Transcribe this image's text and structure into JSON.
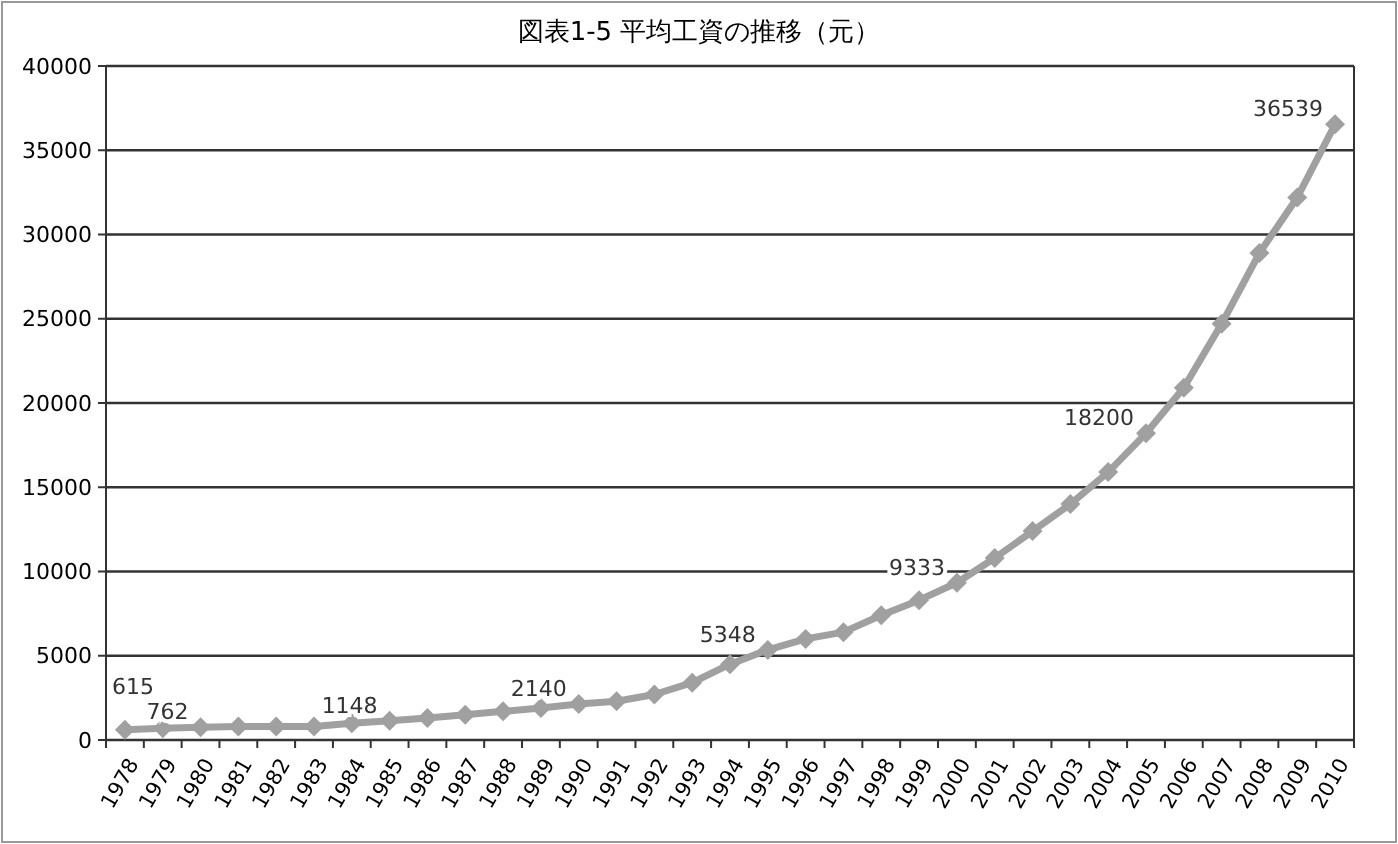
{
  "chart_data": {
    "type": "line",
    "title": "図表1-5 平均工資の推移（元）",
    "categories": [
      "1978",
      "1979",
      "1980",
      "1981",
      "1982",
      "1983",
      "1984",
      "1985",
      "1986",
      "1987",
      "1988",
      "1989",
      "1990",
      "1991",
      "1992",
      "1993",
      "1994",
      "1995",
      "1996",
      "1997",
      "1998",
      "1999",
      "2000",
      "2001",
      "2002",
      "2003",
      "2004",
      "2005",
      "2006",
      "2007",
      "2008",
      "2009",
      "2010"
    ],
    "values": [
      615,
      700,
      762,
      800,
      800,
      800,
      1000,
      1148,
      1300,
      1500,
      1700,
      1900,
      2140,
      2300,
      2700,
      3400,
      4500,
      5348,
      6000,
      6400,
      7400,
      8300,
      9333,
      10800,
      12400,
      14000,
      15900,
      18200,
      20900,
      24700,
      28900,
      32200,
      36539
    ],
    "value_labels": [
      "615",
      null,
      "762",
      null,
      null,
      null,
      null,
      "1148",
      null,
      null,
      null,
      null,
      "2140",
      null,
      null,
      null,
      null,
      "5348",
      null,
      null,
      null,
      null,
      "9333",
      null,
      null,
      null,
      null,
      "18200",
      null,
      null,
      null,
      null,
      "36539"
    ],
    "color": "#a0a0a0",
    "marker": "diamond",
    "line_style": "solid",
    "ylim": [
      0,
      40000
    ],
    "yticks": [
      0,
      5000,
      10000,
      15000,
      20000,
      25000,
      30000,
      35000,
      40000
    ],
    "grid": "y"
  }
}
